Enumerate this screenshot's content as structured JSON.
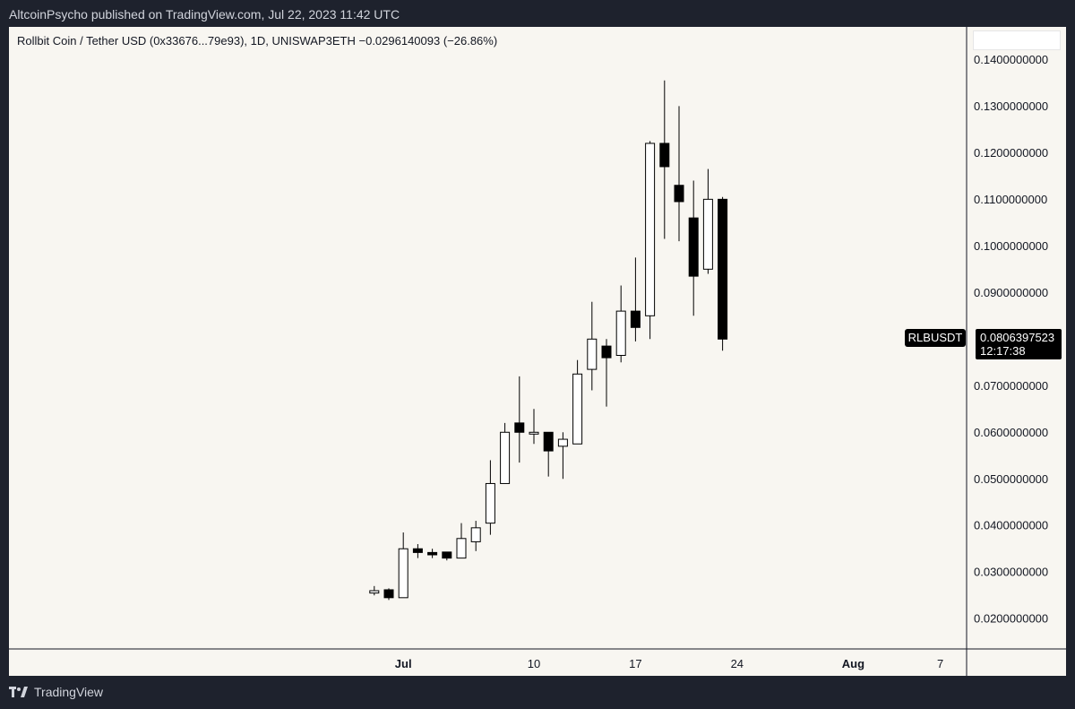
{
  "header": {
    "publisher_line": "AltcoinPsycho published on TradingView.com, Jul 22, 2023 11:42 UTC"
  },
  "chart_data": {
    "type": "candlestick",
    "title": "Rollbit Coin / Tether USD (0x33676...79e93), 1D, UNISWAP3ETH  −0.0296140093 (−26.86%)",
    "y_ticks": [
      "0.1400000000",
      "0.1300000000",
      "0.1200000000",
      "0.1100000000",
      "0.1000000000",
      "0.0900000000",
      "0.0700000000",
      "0.0600000000",
      "0.0500000000",
      "0.0400000000",
      "0.0300000000",
      "0.0200000000"
    ],
    "y_tick_values": [
      0.14,
      0.13,
      0.12,
      0.11,
      0.1,
      0.09,
      0.07,
      0.06,
      0.05,
      0.04,
      0.03,
      0.02
    ],
    "x_ticks": [
      {
        "label": "Jul",
        "day": 1
      },
      {
        "label": "10",
        "day": 10
      },
      {
        "label": "17",
        "day": 17
      },
      {
        "label": "24",
        "day": 24
      },
      {
        "label": "Aug",
        "day": 32
      },
      {
        "label": "7",
        "day": 38
      }
    ],
    "ylim": [
      0.0135,
      0.147
    ],
    "candles": [
      {
        "day": -1,
        "open": 0.0255,
        "high": 0.027,
        "low": 0.025,
        "close": 0.026
      },
      {
        "day": 0,
        "open": 0.0262,
        "high": 0.0265,
        "low": 0.024,
        "close": 0.0245
      },
      {
        "day": 1,
        "open": 0.0245,
        "high": 0.0385,
        "low": 0.0245,
        "close": 0.035
      },
      {
        "day": 2,
        "open": 0.035,
        "high": 0.036,
        "low": 0.033,
        "close": 0.0342
      },
      {
        "day": 3,
        "open": 0.0342,
        "high": 0.035,
        "low": 0.033,
        "close": 0.0337
      },
      {
        "day": 4,
        "open": 0.0343,
        "high": 0.0343,
        "low": 0.0325,
        "close": 0.033
      },
      {
        "day": 5,
        "open": 0.033,
        "high": 0.0405,
        "low": 0.033,
        "close": 0.0372
      },
      {
        "day": 6,
        "open": 0.0365,
        "high": 0.041,
        "low": 0.0345,
        "close": 0.0395
      },
      {
        "day": 7,
        "open": 0.0405,
        "high": 0.054,
        "low": 0.038,
        "close": 0.049
      },
      {
        "day": 8,
        "open": 0.049,
        "high": 0.062,
        "low": 0.049,
        "close": 0.06
      },
      {
        "day": 9,
        "open": 0.062,
        "high": 0.072,
        "low": 0.0535,
        "close": 0.06
      },
      {
        "day": 10,
        "open": 0.06,
        "high": 0.065,
        "low": 0.0575,
        "close": 0.06
      },
      {
        "day": 11,
        "open": 0.06,
        "high": 0.06,
        "low": 0.0505,
        "close": 0.056
      },
      {
        "day": 12,
        "open": 0.057,
        "high": 0.06,
        "low": 0.05,
        "close": 0.0585
      },
      {
        "day": 13,
        "open": 0.0575,
        "high": 0.0755,
        "low": 0.0575,
        "close": 0.0725
      },
      {
        "day": 14,
        "open": 0.0735,
        "high": 0.088,
        "low": 0.069,
        "close": 0.08
      },
      {
        "day": 15,
        "open": 0.0785,
        "high": 0.08,
        "low": 0.0655,
        "close": 0.076
      },
      {
        "day": 16,
        "open": 0.0765,
        "high": 0.0915,
        "low": 0.075,
        "close": 0.086
      },
      {
        "day": 17,
        "open": 0.086,
        "high": 0.0975,
        "low": 0.0795,
        "close": 0.0825
      },
      {
        "day": 18,
        "open": 0.085,
        "high": 0.1225,
        "low": 0.08,
        "close": 0.122
      },
      {
        "day": 19,
        "open": 0.122,
        "high": 0.1355,
        "low": 0.1015,
        "close": 0.117
      },
      {
        "day": 20,
        "open": 0.113,
        "high": 0.13,
        "low": 0.101,
        "close": 0.1095
      },
      {
        "day": 21,
        "open": 0.106,
        "high": 0.114,
        "low": 0.085,
        "close": 0.0935
      },
      {
        "day": 22,
        "open": 0.095,
        "high": 0.1165,
        "low": 0.094,
        "close": 0.11
      },
      {
        "day": 23,
        "open": 0.11,
        "high": 0.1105,
        "low": 0.0775,
        "close": 0.08
      }
    ],
    "last_price": {
      "symbol": "RLBUSDT",
      "price": "0.0806397523",
      "countdown": "12:17:38"
    }
  },
  "footer": {
    "brand": "TradingView",
    "logo_icon": "tradingview-logo-icon"
  }
}
